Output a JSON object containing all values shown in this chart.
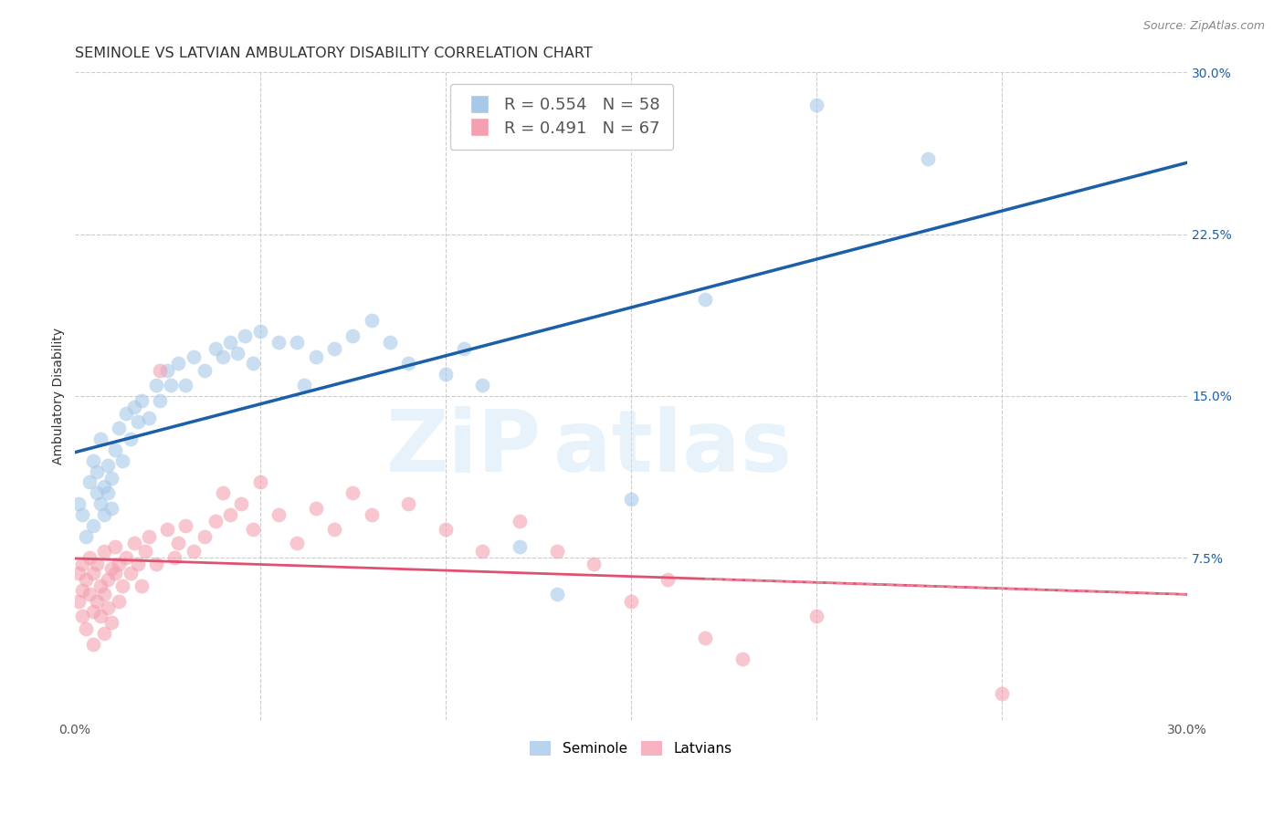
{
  "title": "SEMINOLE VS LATVIAN AMBULATORY DISABILITY CORRELATION CHART",
  "source": "Source: ZipAtlas.com",
  "ylabel": "Ambulatory Disability",
  "watermark": "ZipAtlas",
  "xlim": [
    0.0,
    0.3
  ],
  "ylim": [
    0.0,
    0.3
  ],
  "xticks": [
    0.0,
    0.05,
    0.1,
    0.15,
    0.2,
    0.25,
    0.3
  ],
  "yticks": [
    0.0,
    0.075,
    0.15,
    0.225,
    0.3
  ],
  "xtick_labels": [
    "0.0%",
    "",
    "",
    "",
    "",
    "",
    "30.0%"
  ],
  "ytick_labels": [
    "",
    "7.5%",
    "15.0%",
    "22.5%",
    "30.0%"
  ],
  "seminole_color": "#a8c8e8",
  "latvian_color": "#f4a0b0",
  "trend_seminole_color": "#1a5fa8",
  "trend_latvian_color": "#e05070",
  "legend_box_seminole": "#a8c8e8",
  "legend_box_latvian": "#f4a0b0",
  "legend_R_color": "#1a5fa8",
  "legend_N_color": "#e05070",
  "seminole_R": "0.554",
  "seminole_N": "58",
  "latvian_R": "0.491",
  "latvian_N": "67",
  "seminole_points": [
    [
      0.001,
      0.1
    ],
    [
      0.002,
      0.095
    ],
    [
      0.003,
      0.085
    ],
    [
      0.004,
      0.11
    ],
    [
      0.005,
      0.09
    ],
    [
      0.005,
      0.12
    ],
    [
      0.006,
      0.105
    ],
    [
      0.006,
      0.115
    ],
    [
      0.007,
      0.1
    ],
    [
      0.007,
      0.13
    ],
    [
      0.008,
      0.108
    ],
    [
      0.008,
      0.095
    ],
    [
      0.009,
      0.118
    ],
    [
      0.009,
      0.105
    ],
    [
      0.01,
      0.112
    ],
    [
      0.01,
      0.098
    ],
    [
      0.011,
      0.125
    ],
    [
      0.012,
      0.135
    ],
    [
      0.013,
      0.12
    ],
    [
      0.014,
      0.142
    ],
    [
      0.015,
      0.13
    ],
    [
      0.016,
      0.145
    ],
    [
      0.017,
      0.138
    ],
    [
      0.018,
      0.148
    ],
    [
      0.02,
      0.14
    ],
    [
      0.022,
      0.155
    ],
    [
      0.023,
      0.148
    ],
    [
      0.025,
      0.162
    ],
    [
      0.026,
      0.155
    ],
    [
      0.028,
      0.165
    ],
    [
      0.03,
      0.155
    ],
    [
      0.032,
      0.168
    ],
    [
      0.035,
      0.162
    ],
    [
      0.038,
      0.172
    ],
    [
      0.04,
      0.168
    ],
    [
      0.042,
      0.175
    ],
    [
      0.044,
      0.17
    ],
    [
      0.046,
      0.178
    ],
    [
      0.048,
      0.165
    ],
    [
      0.05,
      0.18
    ],
    [
      0.055,
      0.175
    ],
    [
      0.06,
      0.175
    ],
    [
      0.062,
      0.155
    ],
    [
      0.065,
      0.168
    ],
    [
      0.07,
      0.172
    ],
    [
      0.075,
      0.178
    ],
    [
      0.08,
      0.185
    ],
    [
      0.085,
      0.175
    ],
    [
      0.09,
      0.165
    ],
    [
      0.1,
      0.16
    ],
    [
      0.105,
      0.172
    ],
    [
      0.11,
      0.155
    ],
    [
      0.12,
      0.08
    ],
    [
      0.13,
      0.058
    ],
    [
      0.15,
      0.102
    ],
    [
      0.17,
      0.195
    ],
    [
      0.2,
      0.285
    ],
    [
      0.23,
      0.26
    ]
  ],
  "latvian_points": [
    [
      0.001,
      0.068
    ],
    [
      0.001,
      0.055
    ],
    [
      0.002,
      0.072
    ],
    [
      0.002,
      0.06
    ],
    [
      0.002,
      0.048
    ],
    [
      0.003,
      0.065
    ],
    [
      0.003,
      0.042
    ],
    [
      0.004,
      0.058
    ],
    [
      0.004,
      0.075
    ],
    [
      0.005,
      0.068
    ],
    [
      0.005,
      0.05
    ],
    [
      0.005,
      0.035
    ],
    [
      0.006,
      0.072
    ],
    [
      0.006,
      0.055
    ],
    [
      0.007,
      0.062
    ],
    [
      0.007,
      0.048
    ],
    [
      0.008,
      0.078
    ],
    [
      0.008,
      0.058
    ],
    [
      0.008,
      0.04
    ],
    [
      0.009,
      0.065
    ],
    [
      0.009,
      0.052
    ],
    [
      0.01,
      0.07
    ],
    [
      0.01,
      0.045
    ],
    [
      0.011,
      0.068
    ],
    [
      0.011,
      0.08
    ],
    [
      0.012,
      0.072
    ],
    [
      0.012,
      0.055
    ],
    [
      0.013,
      0.062
    ],
    [
      0.014,
      0.075
    ],
    [
      0.015,
      0.068
    ],
    [
      0.016,
      0.082
    ],
    [
      0.017,
      0.072
    ],
    [
      0.018,
      0.062
    ],
    [
      0.019,
      0.078
    ],
    [
      0.02,
      0.085
    ],
    [
      0.022,
      0.072
    ],
    [
      0.023,
      0.162
    ],
    [
      0.025,
      0.088
    ],
    [
      0.027,
      0.075
    ],
    [
      0.028,
      0.082
    ],
    [
      0.03,
      0.09
    ],
    [
      0.032,
      0.078
    ],
    [
      0.035,
      0.085
    ],
    [
      0.038,
      0.092
    ],
    [
      0.04,
      0.105
    ],
    [
      0.042,
      0.095
    ],
    [
      0.045,
      0.1
    ],
    [
      0.048,
      0.088
    ],
    [
      0.05,
      0.11
    ],
    [
      0.055,
      0.095
    ],
    [
      0.06,
      0.082
    ],
    [
      0.065,
      0.098
    ],
    [
      0.07,
      0.088
    ],
    [
      0.075,
      0.105
    ],
    [
      0.08,
      0.095
    ],
    [
      0.09,
      0.1
    ],
    [
      0.1,
      0.088
    ],
    [
      0.11,
      0.078
    ],
    [
      0.12,
      0.092
    ],
    [
      0.13,
      0.078
    ],
    [
      0.14,
      0.072
    ],
    [
      0.15,
      0.055
    ],
    [
      0.16,
      0.065
    ],
    [
      0.17,
      0.038
    ],
    [
      0.18,
      0.028
    ],
    [
      0.2,
      0.048
    ],
    [
      0.25,
      0.012
    ]
  ],
  "background_color": "#ffffff",
  "grid_color": "#cccccc",
  "title_fontsize": 11.5,
  "axis_label_fontsize": 10,
  "tick_fontsize": 10,
  "source_fontsize": 9
}
